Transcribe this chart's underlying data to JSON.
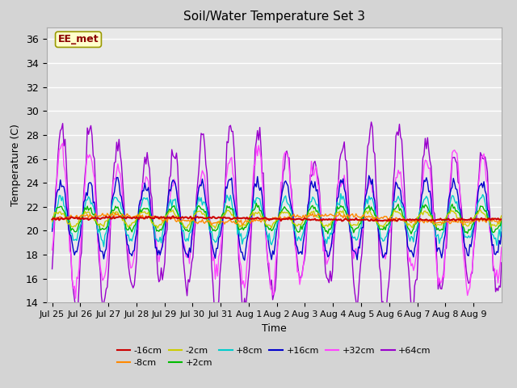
{
  "title": "Soil/Water Temperature Set 3",
  "xlabel": "Time",
  "ylabel": "Temperature (C)",
  "ylim": [
    14,
    37
  ],
  "yticks": [
    14,
    16,
    18,
    20,
    22,
    24,
    26,
    28,
    30,
    32,
    34,
    36
  ],
  "annotation": "EE_met",
  "plot_bg_color": "#e8e8e8",
  "fig_bg_color": "#d4d4d4",
  "series_colors": {
    "-16cm": "#cc0000",
    "-8cm": "#ff8800",
    "-2cm": "#cccc00",
    "+2cm": "#00bb00",
    "+8cm": "#00cccc",
    "+16cm": "#0000cc",
    "+32cm": "#ff44ff",
    "+64cm": "#9900cc"
  },
  "xtick_labels": [
    "Jul 25",
    "Jul 26",
    "Jul 27",
    "Jul 28",
    "Jul 29",
    "Jul 30",
    "Jul 31",
    "Aug 1",
    "Aug 2",
    "Aug 3",
    "Aug 4",
    "Aug 5",
    "Aug 6",
    "Aug 7",
    "Aug 8",
    "Aug 9"
  ],
  "font_size": 9,
  "title_font_size": 11
}
